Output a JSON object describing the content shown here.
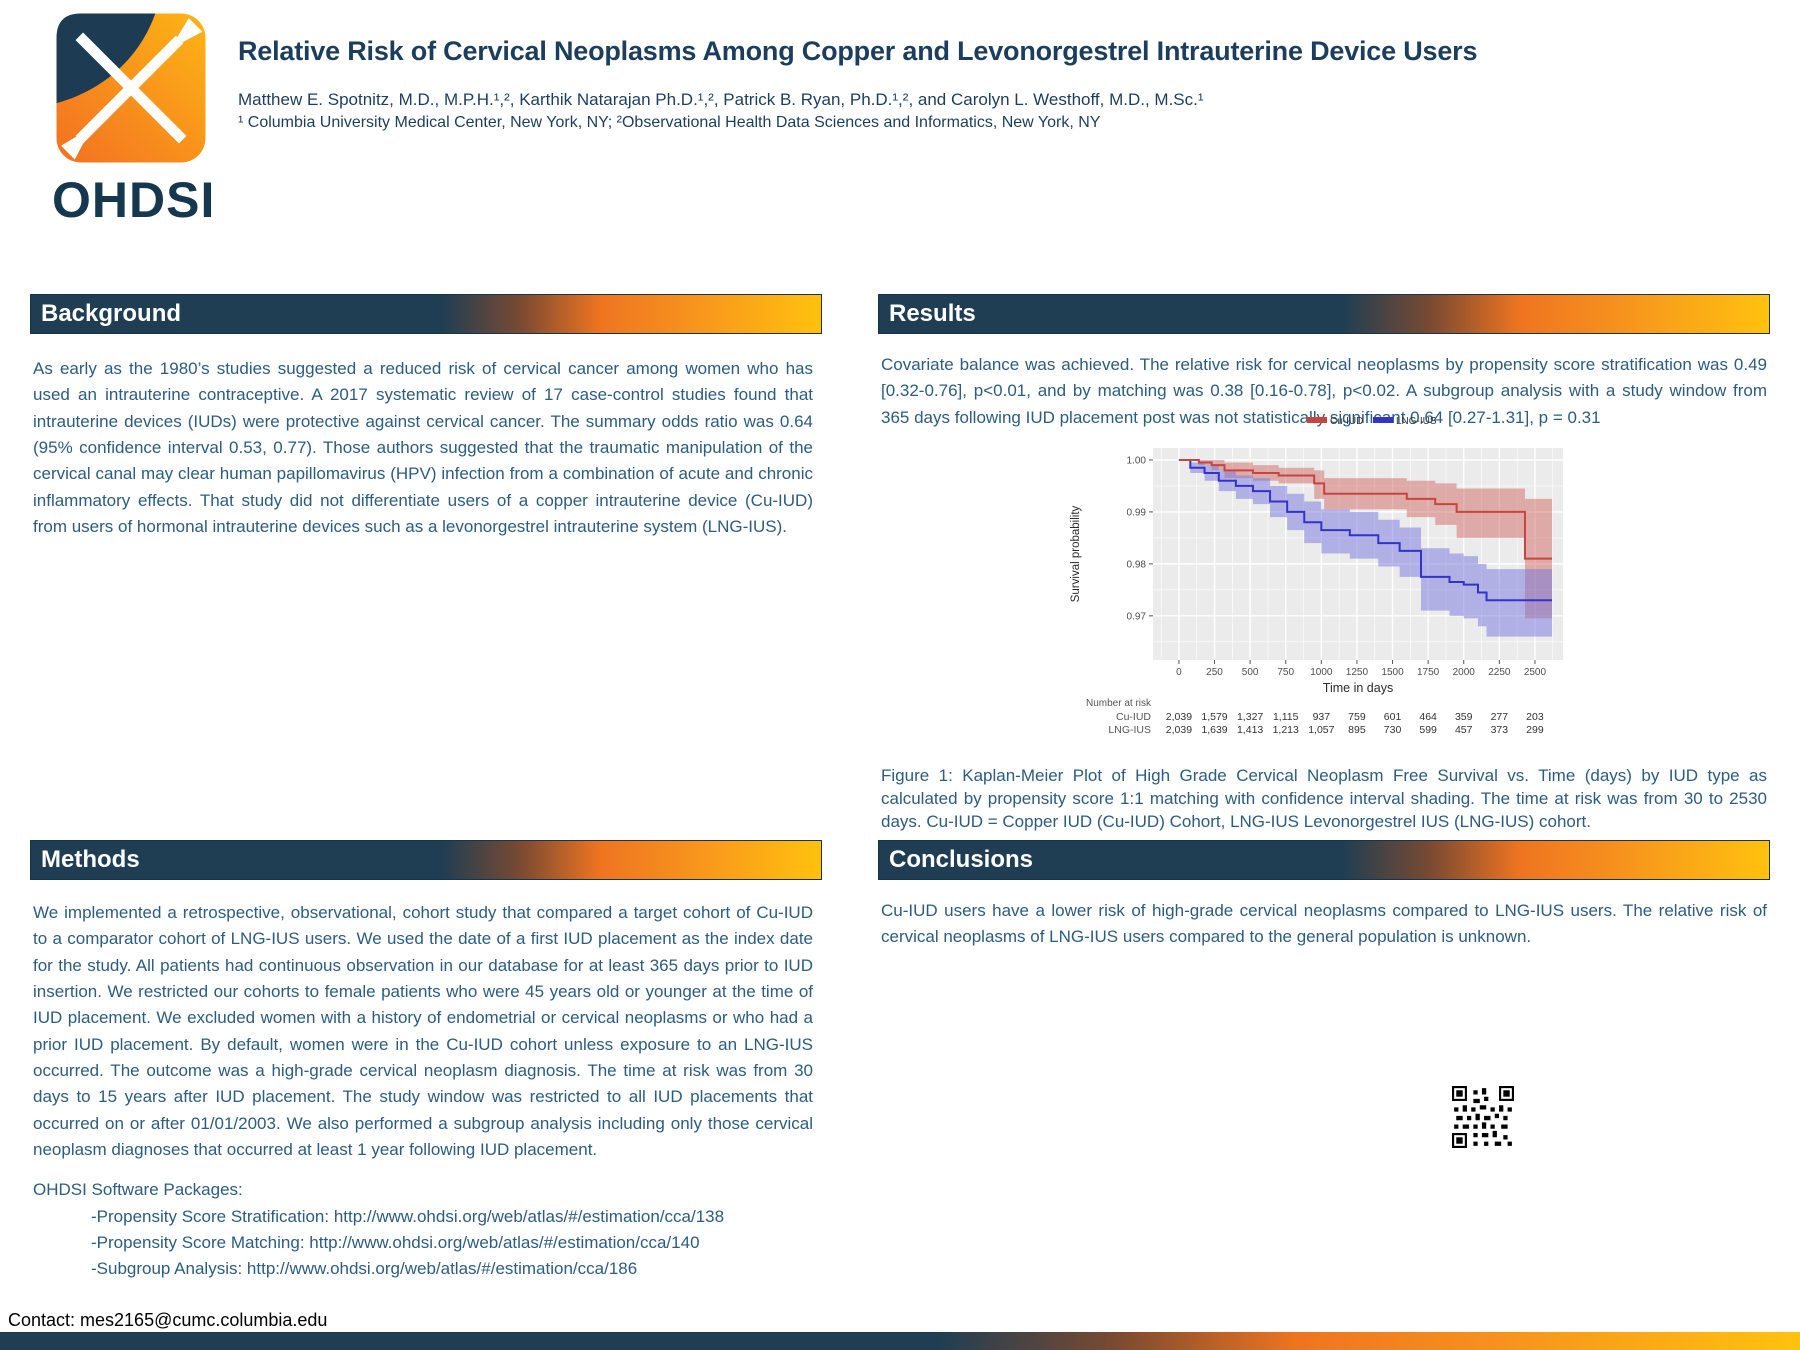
{
  "header": {
    "logo_word": "OHDSI",
    "title": "Relative Risk of Cervical Neoplasms Among Copper and Levonorgestrel Intrauterine Device Users",
    "authors": "Matthew E. Spotnitz, M.D., M.P.H.¹,², Karthik Natarajan Ph.D.¹,², Patrick B. Ryan, Ph.D.¹,², and Carolyn L. Westhoff, M.D., M.Sc.¹",
    "affiliations": "¹ Columbia University Medical Center, New York, NY; ²Observational Health Data Sciences and Informatics, New York, NY"
  },
  "sections": {
    "background": {
      "title": "Background",
      "body": "As early as the 1980’s studies suggested a reduced risk of cervical cancer among women who has used an intrauterine contraceptive.   A 2017 systematic review of 17 case-control studies found that intrauterine devices (IUDs) were protective against cervical cancer.  The summary odds ratio was 0.64 (95% confidence interval 0.53, 0.77). Those authors suggested that the traumatic manipulation of the cervical canal may clear human papillomavirus (HPV) infection from a combination of acute and chronic inflammatory effects. That study did not differentiate users of a copper intrauterine device (Cu-IUD) from users of hormonal intrauterine devices such as a levonorgestrel intrauterine system (LNG-IUS)."
    },
    "results": {
      "title": "Results",
      "body": "Covariate balance was achieved. The relative risk for cervical neoplasms by propensity score stratification was 0.49 [0.32-0.76], p<0.01, and by matching was 0.38 [0.16-0.78], p<0.02. A subgroup analysis with a study window from 365 days following IUD placement post was not statistically significant 0.64 [0.27-1.31], p = 0.31",
      "figure_caption": "Figure 1: Kaplan-Meier Plot of High Grade Cervical Neoplasm Free Survival vs. Time (days) by IUD type as calculated by propensity score 1:1 matching with confidence interval shading. The time at risk was from 30 to 2530 days. Cu-IUD = Copper IUD (Cu-IUD) Cohort, LNG-IUS Levonorgestrel IUS (LNG-IUS) cohort."
    },
    "methods": {
      "title": "Methods",
      "body": "We implemented a retrospective, observational, cohort study that compared a target cohort of Cu-IUD to a comparator cohort of LNG-IUS users. We used the date of a first IUD placement as the index date for the study. All patients had continuous observation in our database for at least 365 days prior to IUD insertion. We restricted our cohorts to female patients who were 45 years old or younger at the time of IUD placement. We excluded women with a history of endometrial or cervical neoplasms or who had a prior IUD placement. By default, women were in the Cu-IUD cohort unless exposure to an LNG-IUS occurred. The outcome was a high-grade cervical neoplasm diagnosis. The time at risk was from 30 days to 15 years after IUD placement. The study window was restricted to all IUD placements that occurred on or after 01/01/2003. We also performed a subgroup analysis including only those cervical neoplasm diagnoses that occurred at least 1 year following IUD placement.",
      "software_heading": "OHDSI Software Packages:",
      "software_items": [
        "-Propensity Score Stratification: http://www.ohdsi.org/web/atlas/#/estimation/cca/138",
        "-Propensity Score Matching: http://www.ohdsi.org/web/atlas/#/estimation/cca/140",
        "-Subgroup Analysis:  http://www.ohdsi.org/web/atlas/#/estimation/cca/186"
      ]
    },
    "conclusions": {
      "title": "Conclusions",
      "body": "Cu-IUD users have a lower risk of high-grade cervical neoplasms compared to LNG-IUS users. The relative risk of cervical neoplasms of LNG-IUS users compared to the general population is unknown."
    }
  },
  "contact": "Contact:  mes2165@cumc.columbia.edu",
  "colors": {
    "navy": "#1f3e53",
    "orange": "#ee7420",
    "yellow": "#ffc20e",
    "body_text": "#2c5c80",
    "cu_iud_red": "#C64540",
    "lng_ius_blue": "#3333CC"
  },
  "chart_data": {
    "type": "line",
    "kind": "kaplan-meier-step",
    "title": "",
    "xlabel": "Time in days",
    "ylabel": "Survival probability",
    "xlim": [
      -182,
      2697
    ],
    "ylim": [
      0.9615,
      1.0023
    ],
    "xticks": [
      0,
      250,
      500,
      750,
      1000,
      1250,
      1500,
      1750,
      2000,
      2250,
      2500
    ],
    "yticks": [
      {
        "v": 1.0,
        "label": "1.00"
      },
      {
        "v": 0.99,
        "label": "0.99"
      },
      {
        "v": 0.98,
        "label": "0.98"
      },
      {
        "v": 0.97,
        "label": "0.97"
      }
    ],
    "plot_bg": "#EBEBEB",
    "grid": true,
    "legend_position": "top",
    "series": [
      {
        "name": "Cu-IUD",
        "color": "#C64540",
        "band_color": "rgba(205,90,85,0.45)",
        "points_format": [
          "x",
          "y",
          "lo",
          "hi"
        ],
        "points": [
          [
            0,
            1.0,
            1.0,
            1.0
          ],
          [
            140,
            0.9995,
            0.999,
            1.0
          ],
          [
            230,
            0.999,
            0.998,
            1.0
          ],
          [
            320,
            0.998,
            0.9965,
            0.9995
          ],
          [
            520,
            0.9975,
            0.996,
            0.999
          ],
          [
            700,
            0.997,
            0.9955,
            0.9985
          ],
          [
            950,
            0.9955,
            0.9925,
            0.998
          ],
          [
            1020,
            0.9935,
            0.9905,
            0.9965
          ],
          [
            1450,
            0.9935,
            0.9905,
            0.9965
          ],
          [
            1600,
            0.9925,
            0.989,
            0.996
          ],
          [
            1800,
            0.9915,
            0.9875,
            0.9955
          ],
          [
            1950,
            0.99,
            0.985,
            0.9945
          ],
          [
            2380,
            0.99,
            0.985,
            0.9945
          ],
          [
            2430,
            0.981,
            0.9695,
            0.9925
          ],
          [
            2620,
            0.981,
            0.9695,
            0.9925
          ]
        ]
      },
      {
        "name": "LNG-IUS",
        "color": "#3333CC",
        "band_color": "rgba(118,118,222,0.5)",
        "points_format": [
          "x",
          "y",
          "lo",
          "hi"
        ],
        "points": [
          [
            0,
            1.0,
            1.0,
            1.0
          ],
          [
            80,
            0.9985,
            0.9975,
            0.9995
          ],
          [
            180,
            0.9975,
            0.996,
            0.999
          ],
          [
            280,
            0.996,
            0.994,
            0.998
          ],
          [
            400,
            0.995,
            0.9925,
            0.997
          ],
          [
            520,
            0.994,
            0.9915,
            0.9965
          ],
          [
            640,
            0.992,
            0.989,
            0.995
          ],
          [
            760,
            0.99,
            0.9865,
            0.9935
          ],
          [
            880,
            0.988,
            0.984,
            0.992
          ],
          [
            1000,
            0.9865,
            0.982,
            0.9905
          ],
          [
            1200,
            0.9855,
            0.981,
            0.99
          ],
          [
            1400,
            0.984,
            0.9795,
            0.9885
          ],
          [
            1550,
            0.9825,
            0.9775,
            0.987
          ],
          [
            1700,
            0.9775,
            0.971,
            0.983
          ],
          [
            1900,
            0.9765,
            0.97,
            0.982
          ],
          [
            2000,
            0.976,
            0.9695,
            0.9815
          ],
          [
            2100,
            0.9745,
            0.968,
            0.98
          ],
          [
            2160,
            0.973,
            0.966,
            0.979
          ],
          [
            2620,
            0.973,
            0.966,
            0.979
          ]
        ]
      }
    ],
    "number_at_risk": {
      "label": "Number at risk",
      "rows": [
        {
          "name": "Cu-IUD",
          "values": [
            "2,039",
            "1,579",
            "1,327",
            "1,115",
            "937",
            "759",
            "601",
            "464",
            "359",
            "277",
            "203"
          ]
        },
        {
          "name": "LNG-IUS",
          "values": [
            "2,039",
            "1,639",
            "1,413",
            "1,213",
            "1,057",
            "895",
            "730",
            "599",
            "457",
            "373",
            "299"
          ]
        }
      ]
    }
  }
}
